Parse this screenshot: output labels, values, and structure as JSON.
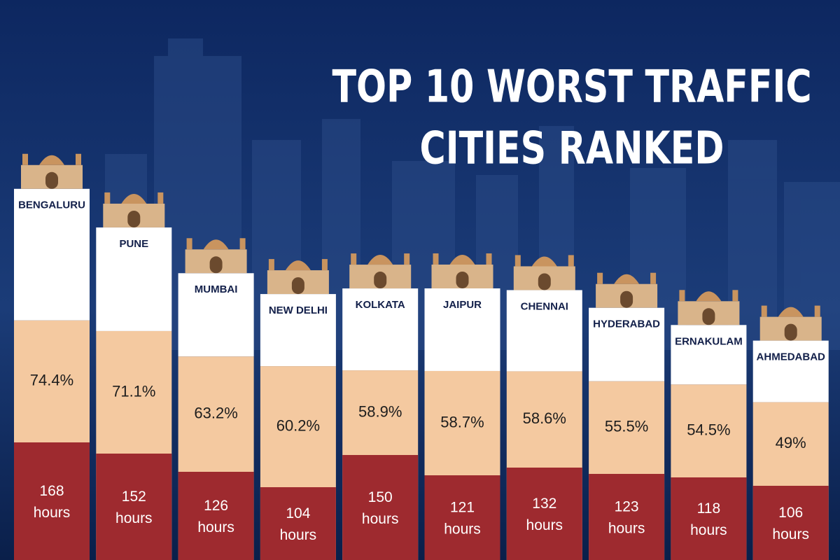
{
  "chart_data": {
    "type": "bar",
    "title": [
      "TOP 10 WORST TRAFFIC",
      "CITIES RANKED"
    ],
    "categories": [
      "BENGALURU",
      "PUNE",
      "MUMBAI",
      "NEW DELHI",
      "KOLKATA",
      "JAIPUR",
      "CHENNAI",
      "HYDERABAD",
      "ERNAKULAM",
      "AHMEDABAD"
    ],
    "series": [
      {
        "color": "#f4c9a0",
        "values": [
          74.4,
          71.1,
          63.2,
          60.2,
          58.9,
          58.7,
          58.6,
          55.5,
          54.5,
          49
        ],
        "value_labels": [
          "74.4%",
          "71.1%",
          "63.2%",
          "60.2%",
          "58.9%",
          "58.7%",
          "58.6%",
          "55.5%",
          "54.5%",
          "49%"
        ]
      },
      {
        "color": "#9e2a2f",
        "values": [
          168,
          152,
          126,
          104,
          150,
          121,
          132,
          123,
          118,
          106
        ],
        "value_labels": [
          "168 hours",
          "152 hours",
          "126 hours",
          "104 hours",
          "150 hours",
          "121 hours",
          "132 hours",
          "123 hours",
          "118 hours",
          "106 hours"
        ]
      }
    ]
  }
}
